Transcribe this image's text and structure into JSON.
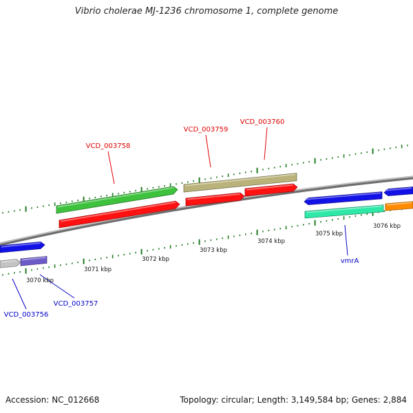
{
  "title": "Vibrio cholerae MJ-1236 chromosome 1, complete genome",
  "footer": {
    "accession": "Accession: NC_012668",
    "stats": "Topology: circular; Length: 3,149,584 bp; Genes: 2,884"
  },
  "colors": {
    "backbone": "#7a7a7a",
    "tick": "#1f7a1f",
    "red_label": "#e00000",
    "blue_label": "#0000c8",
    "gene_green": "#3ec23e",
    "gene_red": "#ff1111",
    "gene_khaki": "#b9b27a",
    "gene_blue": "#1212e6",
    "gene_aqua": "#2ee8a8",
    "gene_orange": "#ff8c00",
    "gene_grey": "#c4c4c4",
    "gene_purple": "#6b5bc8"
  },
  "kbp_labels": [
    "3070 kbp",
    "3071 kbp",
    "3072 kbp",
    "3073 kbp",
    "3074 kbp",
    "3075 kbp",
    "3076 kbp"
  ],
  "gene_labels": [
    {
      "text": "VCD_003758",
      "color": "red"
    },
    {
      "text": "VCD_003759",
      "color": "red"
    },
    {
      "text": "VCD_003760",
      "color": "red"
    },
    {
      "text": "vmrA",
      "color": "blue"
    },
    {
      "text": "VCD_003756",
      "color": "blue"
    },
    {
      "text": "VCD_003757",
      "color": "blue"
    }
  ],
  "genes": [
    {
      "name": "gene-left-blue",
      "color": "gene_blue"
    },
    {
      "name": "gene-left-grey",
      "color": "gene_grey"
    },
    {
      "name": "gene-left-purple",
      "color": "gene_purple"
    },
    {
      "name": "gene-green-long",
      "color": "gene_green"
    },
    {
      "name": "gene-red-left",
      "color": "gene_red"
    },
    {
      "name": "gene-khaki",
      "color": "gene_khaki"
    },
    {
      "name": "gene-red-mid",
      "color": "gene_red"
    },
    {
      "name": "gene-red-right",
      "color": "gene_red"
    },
    {
      "name": "gene-blue-right",
      "color": "gene_blue"
    },
    {
      "name": "gene-aqua-vmrA",
      "color": "gene_aqua"
    },
    {
      "name": "gene-blue-far-right",
      "color": "gene_blue"
    },
    {
      "name": "gene-orange",
      "color": "gene_orange"
    }
  ]
}
